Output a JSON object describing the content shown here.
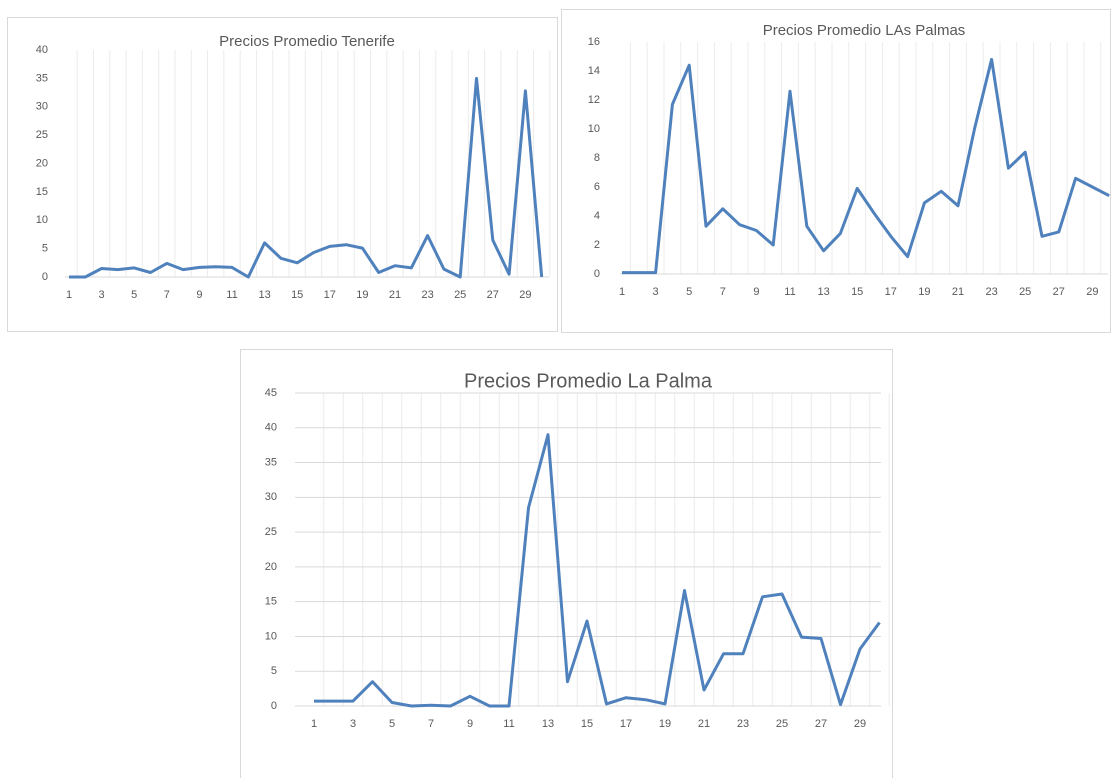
{
  "chart_data": [
    {
      "type": "line",
      "title": "Precios Promedio Tenerife",
      "categories": [
        1,
        null,
        3,
        null,
        5,
        null,
        7,
        null,
        9,
        null,
        11,
        null,
        13,
        null,
        15,
        null,
        17,
        null,
        19,
        null,
        21,
        null,
        23,
        null,
        25,
        null,
        27,
        null,
        29,
        null
      ],
      "values": [
        0,
        0,
        1.5,
        1.3,
        1.6,
        0.8,
        2.4,
        1.3,
        1.7,
        1.8,
        1.7,
        0,
        6,
        3.3,
        2.5,
        4.3,
        5.4,
        5.7,
        5.1,
        0.8,
        2,
        1.6,
        7.3,
        1.4,
        0,
        35,
        6.5,
        0.5,
        32.8,
        0
      ],
      "color": "#4f81bd",
      "ylim": [
        0,
        40
      ],
      "yticks": [
        0,
        5,
        10,
        15,
        20,
        25,
        30,
        35,
        40
      ],
      "grid": "x"
    },
    {
      "type": "line",
      "title": "Precios Promedio LAs Palmas",
      "categories": [
        1,
        null,
        3,
        null,
        5,
        null,
        7,
        null,
        9,
        null,
        11,
        null,
        13,
        null,
        15,
        null,
        17,
        null,
        19,
        null,
        21,
        null,
        23,
        null,
        25,
        null,
        27,
        null,
        29,
        null
      ],
      "values": [
        0.1,
        0.1,
        0.1,
        11.7,
        14.4,
        3.3,
        4.5,
        3.4,
        3,
        2,
        12.6,
        3.3,
        1.6,
        2.8,
        5.9,
        4.2,
        2.6,
        1.2,
        4.9,
        5.7,
        4.7,
        10.1,
        14.8,
        7.3,
        8.4,
        2.6,
        2.9,
        6.6,
        6,
        5.4
      ],
      "color": "#4f81bd",
      "ylim": [
        0,
        16
      ],
      "yticks": [
        0,
        2,
        4,
        6,
        8,
        10,
        12,
        14,
        16
      ],
      "grid": "x"
    },
    {
      "type": "line",
      "title": "Precios Promedio La Palma",
      "categories": [
        1,
        null,
        3,
        null,
        5,
        null,
        7,
        null,
        9,
        null,
        11,
        null,
        13,
        null,
        15,
        null,
        17,
        null,
        19,
        null,
        21,
        null,
        23,
        null,
        25,
        null,
        27,
        null,
        29,
        null
      ],
      "values": [
        0.7,
        0.7,
        0.7,
        3.5,
        0.5,
        0,
        0.1,
        0,
        1.4,
        0,
        0,
        28.5,
        39,
        3.5,
        12.2,
        0.3,
        1.2,
        0.9,
        0.3,
        16.6,
        2.3,
        7.5,
        7.5,
        15.7,
        16.1,
        9.9,
        9.7,
        0.2,
        8.2,
        12
      ],
      "color": "#4f81bd",
      "ylim": [
        0,
        45
      ],
      "yticks": [
        0,
        5,
        10,
        15,
        20,
        25,
        30,
        35,
        40,
        45
      ],
      "grid": "both"
    }
  ]
}
